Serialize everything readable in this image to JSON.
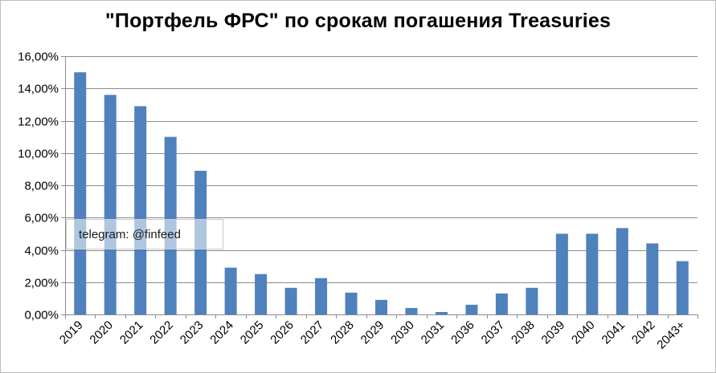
{
  "chart_data": {
    "type": "bar",
    "title": "\"Портфель ФРС\" по срокам погашения Treasuries",
    "xlabel": "",
    "ylabel": "",
    "categories": [
      "2019",
      "2020",
      "2021",
      "2022",
      "2023",
      "2024",
      "2025",
      "2026",
      "2027",
      "2028",
      "2029",
      "2030",
      "2031",
      "2036",
      "2037",
      "2038",
      "2039",
      "2040",
      "2041",
      "2042",
      "2043+"
    ],
    "values": [
      15.0,
      13.6,
      12.9,
      11.0,
      8.9,
      2.9,
      2.5,
      1.65,
      2.25,
      1.35,
      0.9,
      0.4,
      0.15,
      0.6,
      1.3,
      1.65,
      5.0,
      5.0,
      5.35,
      4.4,
      3.3
    ],
    "ylim": [
      0,
      16
    ],
    "yticks": [
      0,
      2,
      4,
      6,
      8,
      10,
      12,
      14,
      16
    ],
    "ytick_labels": [
      "0,00%",
      "2,00%",
      "4,00%",
      "6,00%",
      "8,00%",
      "10,00%",
      "12,00%",
      "14,00%",
      "16,00%"
    ],
    "grid": true,
    "bar_color": "#4f81bd",
    "grid_color": "#8c8c8c",
    "legend": "none"
  },
  "watermark": {
    "text": "telegram: @finfeed"
  }
}
